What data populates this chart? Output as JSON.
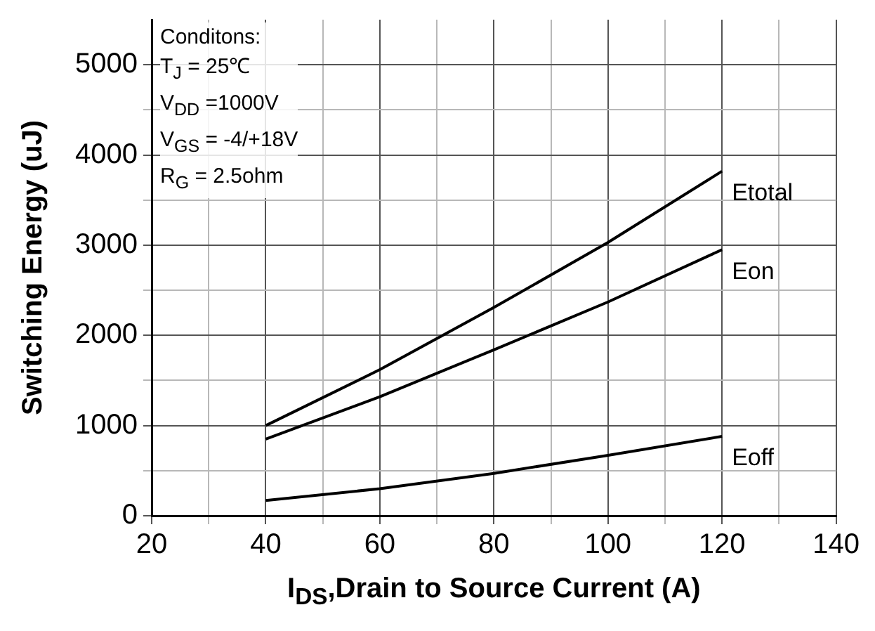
{
  "chart_data": {
    "type": "line",
    "xlabel": "I$_{DS}$,Drain to Source Current (A)",
    "ylabel": "Switching Energy (uJ)",
    "annotations": [
      "Conditons:",
      "T$_{J}$ = 25℃",
      "V$_{DD}$ =1000V",
      "V$_{GS}$ = -4/+18V",
      "R$_{G}$ = 2.5ohm"
    ],
    "x": [
      40,
      60,
      80,
      100,
      120
    ],
    "series": [
      {
        "name": "Etotal",
        "color": "#000000",
        "values": [
          1000,
          1620,
          2310,
          3030,
          3820
        ]
      },
      {
        "name": "Eon",
        "color": "#000000",
        "values": [
          850,
          1320,
          1840,
          2370,
          2950
        ]
      },
      {
        "name": "Eoff",
        "color": "#000000",
        "values": [
          170,
          300,
          470,
          670,
          880
        ]
      }
    ],
    "xlim": [
      20,
      140
    ],
    "ylim": [
      0,
      5500
    ],
    "xticks": [
      20,
      {
        "value": 30,
        "label": null
      },
      40,
      {
        "value": 50,
        "label": null
      },
      60,
      {
        "value": 70,
        "label": null
      },
      80,
      {
        "value": 90,
        "label": null
      },
      100,
      {
        "value": 110,
        "label": null
      },
      120,
      {
        "value": 130,
        "label": null
      },
      140
    ],
    "yticks": [
      0,
      {
        "value": 500,
        "label": null
      },
      1000,
      {
        "value": 1500,
        "label": null
      },
      2000,
      {
        "value": 2500,
        "label": null
      },
      3000,
      {
        "value": 3500,
        "label": null
      },
      4000,
      {
        "value": 4500,
        "label": null
      },
      5000
    ],
    "grid": true,
    "legend": false,
    "marker": "none",
    "line_style": "solid"
  }
}
